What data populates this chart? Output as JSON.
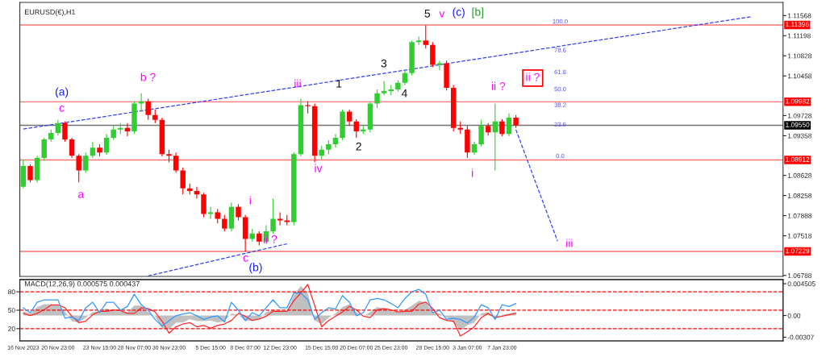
{
  "chart_data": [
    {
      "type": "candlestick",
      "title": "EURUSD(€),H1",
      "tick_labels": "y",
      "grid": false,
      "categories": [
        null,
        null,
        null,
        null,
        null,
        null,
        null,
        null,
        null,
        null,
        null,
        null,
        null,
        null,
        null,
        null,
        null,
        null,
        null,
        null,
        null,
        null,
        null,
        null,
        null,
        null,
        null,
        null,
        null,
        null,
        null,
        null,
        null,
        null,
        null,
        null,
        null,
        null,
        null,
        null,
        null,
        null,
        null,
        null,
        null,
        null,
        null,
        null,
        null,
        null,
        null,
        null,
        null,
        null,
        null,
        null,
        null,
        null,
        null,
        null,
        null,
        null,
        null,
        null,
        null,
        null,
        null,
        null,
        null,
        null,
        null,
        null,
        null,
        null,
        null,
        null,
        null,
        null,
        null,
        null,
        null,
        null,
        null,
        null,
        null,
        null,
        null,
        null,
        null,
        null,
        null,
        null,
        null,
        null,
        null,
        null,
        null,
        null,
        null,
        null,
        null,
        null,
        null,
        null,
        null,
        null,
        null,
        null,
        null,
        null
      ],
      "ohlc": [
        [
          1.0842,
          1.0892,
          1.0839,
          1.088
        ],
        [
          1.088,
          1.0883,
          1.085,
          1.0854
        ],
        [
          1.0854,
          1.0899,
          1.085,
          1.0895
        ],
        [
          1.0895,
          1.0932,
          1.089,
          1.0929
        ],
        [
          1.0929,
          1.0947,
          1.0925,
          1.0941
        ],
        [
          1.0941,
          1.0965,
          1.0936,
          1.0959
        ],
        [
          1.0959,
          1.0962,
          1.0925,
          1.0929
        ],
        [
          1.0929,
          1.0932,
          1.0895,
          1.0899
        ],
        [
          1.0899,
          1.0902,
          1.085,
          1.0872
        ],
        [
          1.0872,
          1.0905,
          1.0868,
          1.0899
        ],
        [
          1.0899,
          1.0925,
          1.0895,
          1.0914
        ],
        [
          1.0914,
          1.092,
          1.0898,
          1.0905
        ],
        [
          1.0905,
          1.0939,
          1.0901,
          1.0932
        ],
        [
          1.0932,
          1.0954,
          1.0928,
          1.0947
        ],
        [
          1.0947,
          1.0959,
          1.0939,
          1.095
        ],
        [
          1.095,
          1.0959,
          1.0935,
          1.0944
        ],
        [
          1.0944,
          1.0999,
          1.0939,
          1.0995
        ],
        [
          1.0995,
          1.1014,
          1.098,
          1.0999
        ],
        [
          1.0999,
          1.1004,
          1.0965,
          1.0974
        ],
        [
          1.0974,
          1.0984,
          1.0959,
          1.0965
        ],
        [
          1.0965,
          1.0969,
          1.0898,
          1.0902
        ],
        [
          1.0902,
          1.091,
          1.0887,
          1.0899
        ],
        [
          1.0899,
          1.0905,
          1.0868,
          1.0872
        ],
        [
          1.0872,
          1.0877,
          1.0828,
          1.0839
        ],
        [
          1.0839,
          1.0848,
          1.0828,
          1.0834
        ],
        [
          1.0834,
          1.0842,
          1.082,
          1.0828
        ],
        [
          1.0828,
          1.0831,
          1.0786,
          1.0792
        ],
        [
          1.0792,
          1.0805,
          1.0783,
          1.0795
        ],
        [
          1.0795,
          1.0801,
          1.0775,
          1.0783
        ],
        [
          1.0783,
          1.079,
          1.076,
          1.0765
        ],
        [
          1.0765,
          1.0813,
          1.076,
          1.0805
        ],
        [
          1.0805,
          1.081,
          1.078,
          1.0786
        ],
        [
          1.0786,
          1.079,
          1.0723,
          1.0746
        ],
        [
          1.0746,
          1.0765,
          1.0741,
          1.0756
        ],
        [
          1.0756,
          1.076,
          1.0734,
          1.0741
        ],
        [
          1.0741,
          1.0771,
          1.0737,
          1.076
        ],
        [
          1.076,
          1.082,
          1.0756,
          1.0783
        ],
        [
          1.0783,
          1.0795,
          1.0771,
          1.078
        ],
        [
          1.078,
          1.079,
          1.0771,
          1.0777
        ],
        [
          1.0777,
          1.0905,
          1.0771,
          1.0902
        ],
        [
          1.0902,
          1.1004,
          1.0898,
          1.0992
        ],
        [
          1.0992,
          1.0999,
          1.0977,
          1.099
        ],
        [
          1.099,
          1.0995,
          1.0887,
          1.0899
        ],
        [
          1.0899,
          1.0917,
          1.0893,
          1.091
        ],
        [
          1.091,
          1.0928,
          1.0902,
          1.092
        ],
        [
          1.092,
          1.0939,
          1.0914,
          1.0932
        ],
        [
          1.0932,
          1.0984,
          1.0928,
          1.098
        ],
        [
          1.098,
          1.0984,
          1.0954,
          1.0962
        ],
        [
          1.0962,
          1.0966,
          1.0932,
          1.0944
        ],
        [
          1.0944,
          1.0954,
          1.0939,
          1.0947
        ],
        [
          1.0947,
          1.0999,
          1.0942,
          1.0995
        ],
        [
          1.0995,
          1.1021,
          1.0987,
          1.1014
        ],
        [
          1.1014,
          1.1036,
          1.101,
          1.1018
        ],
        [
          1.1018,
          1.1029,
          1.101,
          1.1021
        ],
        [
          1.1021,
          1.1038,
          1.1017,
          1.1033
        ],
        [
          1.1033,
          1.1056,
          1.1029,
          1.1051
        ],
        [
          1.1051,
          1.1111,
          1.1047,
          1.1108
        ],
        [
          1.1108,
          1.1118,
          1.1103,
          1.1111
        ],
        [
          1.1111,
          1.1139,
          1.1096,
          1.1103
        ],
        [
          1.1103,
          1.1108,
          1.1062,
          1.1066
        ],
        [
          1.1066,
          1.1074,
          1.1056,
          1.1069
        ],
        [
          1.1069,
          1.1074,
          1.1019,
          1.1024
        ],
        [
          1.1024,
          1.1029,
          1.0944,
          1.095
        ],
        [
          1.095,
          1.0962,
          1.0939,
          1.0947
        ],
        [
          1.0947,
          1.0954,
          1.0895,
          1.0905
        ],
        [
          1.0905,
          1.0925,
          1.0901,
          1.092
        ],
        [
          1.092,
          1.0965,
          1.0916,
          1.0954
        ],
        [
          1.0954,
          1.0959,
          1.0936,
          1.0942
        ],
        [
          1.0942,
          1.0995,
          1.0872,
          1.0962
        ],
        [
          1.0962,
          1.0966,
          1.0935,
          1.0939
        ],
        [
          1.0939,
          1.0977,
          1.0935,
          1.0969
        ],
        [
          1.0969,
          1.0974,
          1.095,
          1.0955
        ],
        null,
        null,
        null,
        null,
        null,
        null,
        null,
        null,
        null,
        null,
        null,
        null,
        null,
        null,
        null,
        null,
        null,
        null,
        null,
        null,
        null,
        null,
        null,
        null,
        null,
        null,
        null,
        null,
        null,
        null,
        null,
        null,
        null,
        null,
        null,
        null,
        null,
        null
      ],
      "colors": [
        "#32cd32",
        "#ff0000",
        "#32cd32",
        "#32cd32",
        "#32cd32",
        "#32cd32",
        "#ff0000",
        "#ff0000",
        "#ff0000",
        "#32cd32",
        "#32cd32",
        "#ff0000",
        "#32cd32",
        "#32cd32",
        "#32cd32",
        "#ff0000",
        "#32cd32",
        "#32cd32",
        "#ff0000",
        "#ff0000",
        "#ff0000",
        "#ff0000",
        "#ff0000",
        "#ff0000",
        "#ff0000",
        "#ff0000",
        "#ff0000",
        "#32cd32",
        "#ff0000",
        "#ff0000",
        "#32cd32",
        "#ff0000",
        "#ff0000",
        "#32cd32",
        "#ff0000",
        "#32cd32",
        "#32cd32",
        "#ff0000",
        "#ff0000",
        "#32cd32",
        "#32cd32",
        "#ff0000",
        "#ff0000",
        "#32cd32",
        "#32cd32",
        "#32cd32",
        "#32cd32",
        "#ff0000",
        "#ff0000",
        "#32cd32",
        "#32cd32",
        "#32cd32",
        "#32cd32",
        "#32cd32",
        "#32cd32",
        "#32cd32",
        "#32cd32",
        "#32cd32",
        "#ff0000",
        "#ff0000",
        "#32cd32",
        "#ff0000",
        "#ff0000",
        "#ff0000",
        "#ff0000",
        "#32cd32",
        "#32cd32",
        "#ff0000",
        "#32cd32",
        "#ff0000",
        "#32cd32",
        "#ff0000",
        null,
        null,
        null,
        null,
        null,
        null,
        null,
        null,
        null,
        null,
        null,
        null,
        null,
        null,
        null,
        null,
        null,
        null,
        null,
        null,
        null,
        null,
        null,
        null,
        null,
        null,
        null,
        null,
        null,
        null,
        null,
        null,
        null,
        null,
        null,
        null,
        null,
        null
      ],
      "series": [
        {
          "type": "line",
          "color": "#3344ee",
          "line_style": "dashed",
          "values": [
            1.0948,
            null,
            null,
            null,
            null,
            null,
            null,
            null,
            null,
            null,
            null,
            null,
            null,
            null,
            null,
            null,
            null,
            null,
            null,
            null,
            null,
            null,
            null,
            null,
            null,
            null,
            null,
            null,
            null,
            null,
            null,
            null,
            null,
            null,
            null,
            null,
            null,
            null,
            null,
            null,
            null,
            null,
            null,
            null,
            null,
            null,
            null,
            null,
            null,
            null,
            null,
            null,
            null,
            null,
            null,
            null,
            null,
            null,
            null,
            null,
            null,
            null,
            null,
            null,
            null,
            null,
            null,
            null,
            null,
            null,
            null,
            null,
            null,
            null,
            null,
            null,
            null,
            null,
            null,
            null,
            null,
            null,
            null,
            null,
            null,
            null,
            null,
            null,
            null,
            null,
            null,
            null,
            null,
            null,
            null,
            null,
            null,
            null,
            null,
            null,
            null,
            null,
            null,
            null,
            null,
            1.1155,
            null,
            null,
            null,
            null
          ]
        },
        {
          "type": "line",
          "color": "#3344ee",
          "line_style": "dashed",
          "values": [
            null,
            null,
            null,
            null,
            null,
            null,
            null,
            null,
            null,
            null,
            null,
            null,
            null,
            null,
            null,
            null,
            null,
            null,
            1.0678,
            null,
            null,
            null,
            null,
            null,
            null,
            null,
            null,
            null,
            null,
            null,
            null,
            null,
            null,
            null,
            null,
            null,
            null,
            null,
            1.0737,
            null,
            null,
            null,
            null,
            null,
            null,
            null,
            null,
            null,
            null,
            null,
            null,
            null,
            null,
            null,
            null,
            null,
            null,
            null,
            null,
            null,
            null,
            null,
            null,
            null,
            null,
            null,
            null,
            null,
            null,
            null,
            null,
            null,
            null,
            null,
            null,
            null,
            null,
            null,
            null,
            null,
            null,
            null,
            null,
            null,
            null,
            null,
            null,
            null,
            null,
            null,
            null,
            null,
            null,
            null,
            null,
            null,
            null,
            null,
            null,
            null,
            null,
            null,
            null,
            null,
            null,
            null,
            null,
            null,
            null,
            null
          ]
        },
        {
          "type": "line",
          "color": "#3344ee",
          "line_style": "dashed",
          "values": [
            null,
            null,
            null,
            null,
            null,
            null,
            null,
            null,
            null,
            null,
            null,
            null,
            null,
            null,
            null,
            null,
            null,
            null,
            null,
            null,
            null,
            null,
            null,
            null,
            null,
            null,
            null,
            null,
            null,
            null,
            null,
            null,
            null,
            null,
            null,
            null,
            null,
            null,
            null,
            null,
            null,
            null,
            null,
            null,
            null,
            null,
            null,
            null,
            null,
            null,
            null,
            null,
            null,
            null,
            null,
            null,
            null,
            null,
            null,
            null,
            null,
            null,
            null,
            null,
            null,
            null,
            null,
            null,
            null,
            null,
            null,
            1.0947,
            null,
            null,
            null,
            null,
            null,
            1.0742,
            null,
            null,
            null,
            null,
            null,
            null,
            null,
            null,
            null,
            null,
            null,
            null,
            null,
            null,
            null,
            null,
            null,
            null,
            null,
            null,
            null,
            null,
            null,
            null,
            null,
            null,
            null,
            null,
            null,
            null,
            null,
            null
          ]
        }
      ],
      "ylim": [
        1.0677,
        1.1181
      ],
      "yticks": [
        1.11568,
        1.11198,
        1.10828,
        1.10458,
        1.09728,
        1.09358,
        1.08628,
        1.08258,
        1.07888,
        1.07518,
        1.06788
      ],
      "ref_lines": [
        {
          "axis": "y",
          "value": 1.11396,
          "label": "1.11396",
          "color": "#ff0000"
        },
        {
          "axis": "y",
          "value": 1.09982,
          "label": "1.09982",
          "color": "#ff0000"
        },
        {
          "axis": "y",
          "value": 1.0955,
          "label": "1.09550",
          "color": "#000000"
        },
        {
          "axis": "y",
          "value": 1.08912,
          "label": "1.08912",
          "color": "#ff0000"
        },
        {
          "axis": "y",
          "value": 1.07229,
          "label": "1.07229",
          "color": "#ff0000"
        }
      ],
      "annotations": [
        "(a)",
        "c",
        "a",
        "b ?",
        "i",
        "ii ?",
        "c",
        "(b)",
        "iii",
        "iv",
        "1",
        "2",
        "3",
        "4",
        "5",
        "v",
        "(c)",
        "[b]",
        "i",
        "ii ?",
        "ii ?",
        "iii",
        "100.0",
        "78.6",
        "61.8",
        "50.0",
        "38.2",
        "23.6",
        "0.0"
      ]
    },
    {
      "type": "line",
      "title": "MACD(12,26,9) 0.000575 0.000437",
      "grid": false,
      "categories": [
        "16 Nov 2023",
        null,
        null,
        null,
        null,
        "20 Nov 23:00",
        null,
        null,
        null,
        null,
        null,
        "23 Nov 15:00",
        null,
        null,
        null,
        null,
        "28 Nov 07:00",
        null,
        null,
        null,
        null,
        "30 Nov 23:00",
        null,
        null,
        null,
        null,
        null,
        "5 Dec 15:00",
        null,
        null,
        null,
        null,
        "8 Dec 07:00",
        null,
        null,
        null,
        null,
        "12 Dec 23:00",
        null,
        null,
        null,
        null,
        null,
        "15 Dec 15:00",
        null,
        null,
        null,
        null,
        "20 Dec 07:00",
        null,
        null,
        null,
        null,
        "25 Dec 23:00",
        null,
        null,
        null,
        null,
        null,
        "28 Dec 15:00",
        null,
        null,
        null,
        null,
        "3 Jan 07:00",
        null,
        null,
        null,
        null,
        "7 Jan 23:00",
        null,
        null,
        null,
        null,
        null,
        null,
        null,
        null,
        null,
        null,
        null,
        null,
        null,
        null,
        null,
        null,
        null,
        null,
        null,
        null,
        null,
        null,
        null,
        null,
        null,
        null,
        null,
        null,
        null,
        null,
        null,
        null,
        null,
        null,
        null,
        null,
        null,
        null,
        null,
        null
      ],
      "series": [
        {
          "type": "area",
          "color": "#c0c0c0",
          "values": [
            0.0006,
            0.0003,
            0.0012,
            0.0016,
            0.0016,
            0.0014,
            0.0006,
            -0.0008,
            -0.001,
            -0.0003,
            0.0005,
            0.0006,
            0.001,
            0.0006,
            0.0006,
            0.0005,
            0.0014,
            0.0014,
            0.0005,
            -0.0001,
            -0.0018,
            -0.002,
            -0.001,
            -0.001,
            -0.0005,
            -0.0008,
            -0.0008,
            -0.0007,
            -0.001,
            -0.0008,
            0.0003,
            0.0001,
            -0.0008,
            -0.0007,
            -0.0005,
            0.0005,
            0.0008,
            0.0006,
            0.0006,
            0.0029,
            0.0042,
            0.0032,
            -0.0007,
            -0.0012,
            -0.0003,
            0.0003,
            0.0012,
            0.0016,
            0.0005,
            -0.0001,
            0.0005,
            0.0012,
            0.001,
            0.0006,
            0.0005,
            0.0008,
            0.0014,
            0.0021,
            0.0019,
            0.0005,
            0.0003,
            -0.0003,
            -0.001,
            -0.0021,
            -0.0014,
            -0.001,
            0.0003,
            0.0005,
            -0.0003,
            0.0001,
            0.0003,
            0.0005,
            null,
            null,
            null,
            null,
            null,
            null,
            null,
            null,
            null,
            null,
            null,
            null,
            null,
            null,
            null,
            null,
            null,
            null,
            null,
            null,
            null,
            null,
            null,
            null,
            null,
            null,
            null,
            null,
            null,
            null,
            null,
            null,
            null,
            null,
            null,
            null,
            null,
            null
          ]
        },
        {
          "type": "line",
          "color": "#ff2a2a",
          "values": [
            0.0003,
            0.0,
            0.0003,
            0.0008,
            0.0015,
            0.0015,
            0.0011,
            -0.0001,
            -0.001,
            -0.0008,
            0.0001,
            0.0006,
            0.0006,
            0.0008,
            0.0007,
            0.0003,
            0.0003,
            0.0011,
            0.001,
            0.0005,
            -0.0008,
            -0.0025,
            -0.0016,
            -0.0012,
            -0.001,
            -0.0016,
            -0.0014,
            -0.0018,
            -0.0014,
            -0.0012,
            -0.0007,
            0.0003,
            -0.0001,
            -0.0007,
            -0.0005,
            -0.0001,
            0.0006,
            0.0006,
            0.0006,
            0.0021,
            0.0032,
            0.0044,
            0.0014,
            -0.0016,
            -0.0007,
            -0.0001,
            0.0005,
            0.0013,
            0.0008,
            -0.0001,
            -0.0003,
            0.0008,
            0.001,
            0.0008,
            0.0005,
            0.0006,
            0.0006,
            0.0016,
            0.0019,
            0.001,
            -0.0003,
            -0.0007,
            -0.0008,
            -0.0029,
            -0.0023,
            -0.0016,
            -0.0003,
            0.0003,
            -0.0003,
            -0.0001,
            0.0001,
            0.0003,
            null,
            null,
            null,
            null,
            null,
            null,
            null,
            null,
            null,
            null,
            null,
            null,
            null,
            null,
            null,
            null,
            null,
            null,
            null,
            null,
            null,
            null,
            null,
            null,
            null,
            null,
            null,
            null,
            null,
            null,
            null,
            null,
            null,
            null,
            null,
            null,
            null,
            null
          ]
        },
        {
          "type": "line",
          "color": "#3399ff",
          "axis": "y2",
          "values": [
            54,
            46,
            63,
            67,
            67,
            67,
            37,
            39,
            33,
            54,
            63,
            46,
            63,
            63,
            50,
            56,
            76,
            59,
            50,
            35,
            24,
            33,
            41,
            44,
            46,
            41,
            35,
            39,
            41,
            31,
            63,
            50,
            33,
            46,
            41,
            54,
            67,
            54,
            54,
            78,
            78,
            67,
            35,
            46,
            54,
            52,
            74,
            63,
            41,
            46,
            67,
            69,
            67,
            61,
            54,
            69,
            80,
            84,
            76,
            46,
            50,
            35,
            37,
            35,
            29,
            39,
            59,
            54,
            35,
            59,
            56,
            61,
            null,
            null,
            null,
            null,
            null,
            null,
            null,
            null,
            null,
            null,
            null,
            null,
            null,
            null,
            null,
            null,
            null,
            null,
            null,
            null,
            null,
            null,
            null,
            null,
            null,
            null,
            null,
            null,
            null,
            null,
            null,
            null,
            null,
            null,
            null,
            null,
            null,
            null
          ]
        }
      ],
      "ylim": [
        -0.0036,
        0.0051
      ],
      "yticks": [
        0.004505,
        {
          "value": 0,
          "label": "0.00"
        },
        -0.00307
      ],
      "y2lim": [
        0,
        100
      ],
      "y2ticks": [
        80,
        50,
        20
      ],
      "ref_lines": [
        {
          "axis": "y2",
          "value": 80,
          "label": null,
          "color": "#ff0000",
          "line_style": "dashed"
        },
        {
          "axis": "y2",
          "value": 50,
          "label": null,
          "color": "#ff0000",
          "line_style": "dashed"
        },
        {
          "axis": "y2",
          "value": 20,
          "label": null,
          "color": "#ff0000",
          "line_style": "dashed"
        }
      ]
    }
  ]
}
